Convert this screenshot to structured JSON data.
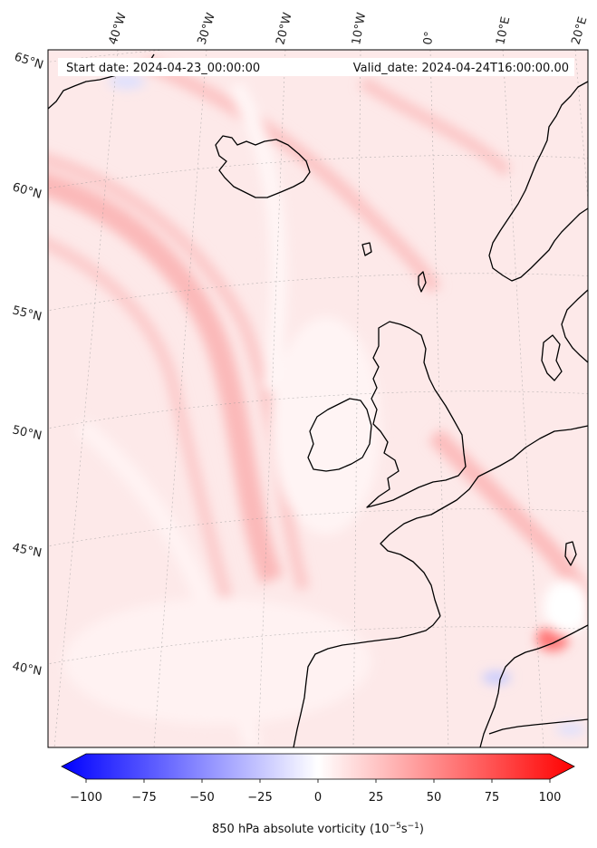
{
  "header": {
    "start_date": "Start date: 2024-04-23_00:00:00",
    "valid_date": "Valid_date: 2024-04-24T16:00:00.00"
  },
  "map": {
    "projection": "lambert-conformal",
    "longitude_labels": [
      "40°W",
      "30°W",
      "20°W",
      "10°W",
      "0°",
      "10°E",
      "20°E"
    ],
    "latitude_labels": [
      "65°N",
      "60°N",
      "55°N",
      "50°N",
      "45°N",
      "40°N"
    ],
    "field": "850 hPa absolute vorticity",
    "colormap": "bwr",
    "land_outline_color": "#000000",
    "gridlines": true
  },
  "colorbar": {
    "tick_labels": [
      "−100",
      "−75",
      "−50",
      "−25",
      "0",
      "25",
      "50",
      "75",
      "100"
    ],
    "range": [
      -100,
      100
    ],
    "extend": "both",
    "title_text": "850 hPa absolute vorticity (10",
    "title_exp1": "−5",
    "title_mid": "s",
    "title_exp2": "−1",
    "title_end": ")",
    "color_min": "#0000ff",
    "color_mid": "#ffffff",
    "color_max": "#ff0000"
  }
}
